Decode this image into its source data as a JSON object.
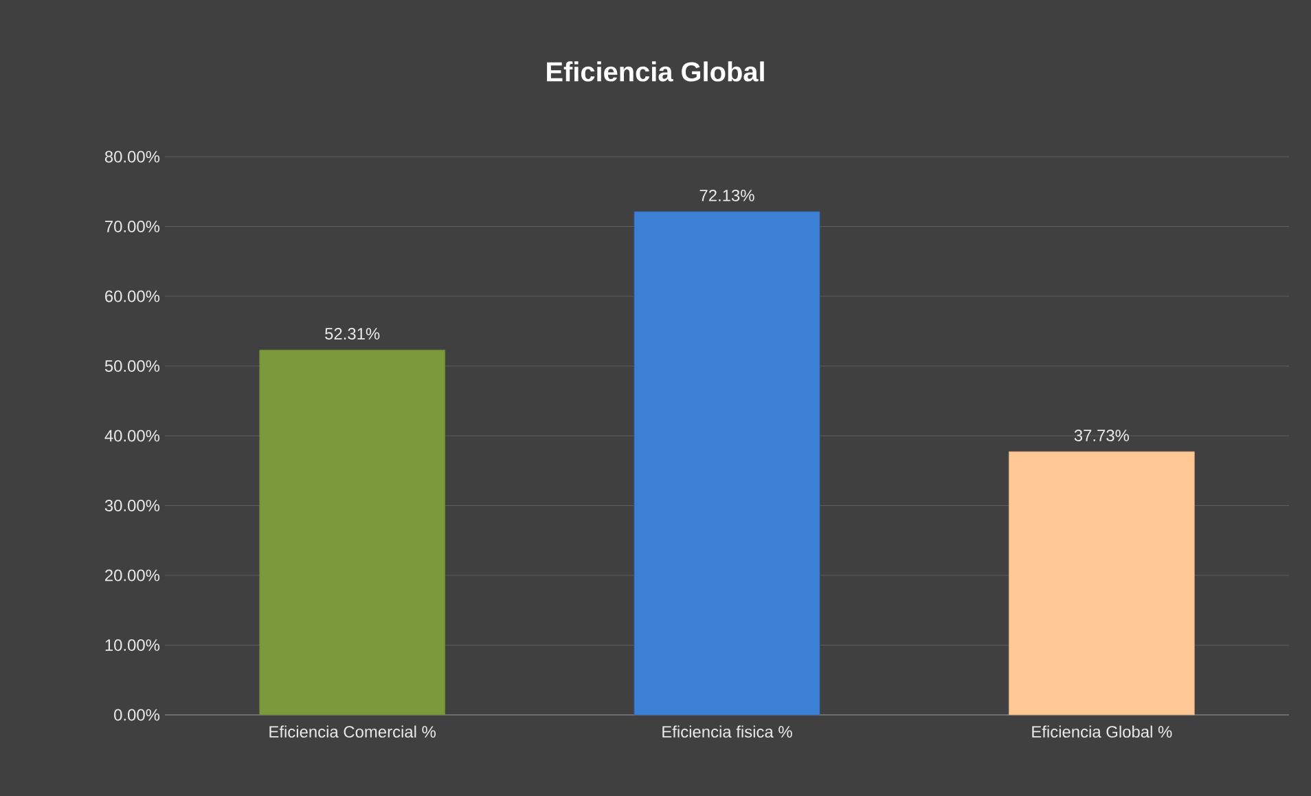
{
  "chart_data": {
    "type": "bar",
    "title": "Eficiencia Global",
    "categories": [
      "Eficiencia Comercial %",
      "Eficiencia fisica %",
      "Eficiencia Global %"
    ],
    "values": [
      52.31,
      72.13,
      37.73
    ],
    "colors": [
      "#7a9a3c",
      "#3c80d6",
      "#fec895"
    ],
    "value_labels": [
      "52.31%",
      "72.13%",
      "37.73%"
    ],
    "ylim": [
      0,
      80
    ],
    "yticks": [
      {
        "value": 0,
        "label": "0.00%"
      },
      {
        "value": 10,
        "label": "10.00%"
      },
      {
        "value": 20,
        "label": "20.00%"
      },
      {
        "value": 30,
        "label": "30.00%"
      },
      {
        "value": 40,
        "label": "40.00%"
      },
      {
        "value": 50,
        "label": "50.00%"
      },
      {
        "value": 60,
        "label": "60.00%"
      },
      {
        "value": 70,
        "label": "70.00%"
      },
      {
        "value": 80,
        "label": "80.00%"
      }
    ],
    "grid": "y"
  }
}
